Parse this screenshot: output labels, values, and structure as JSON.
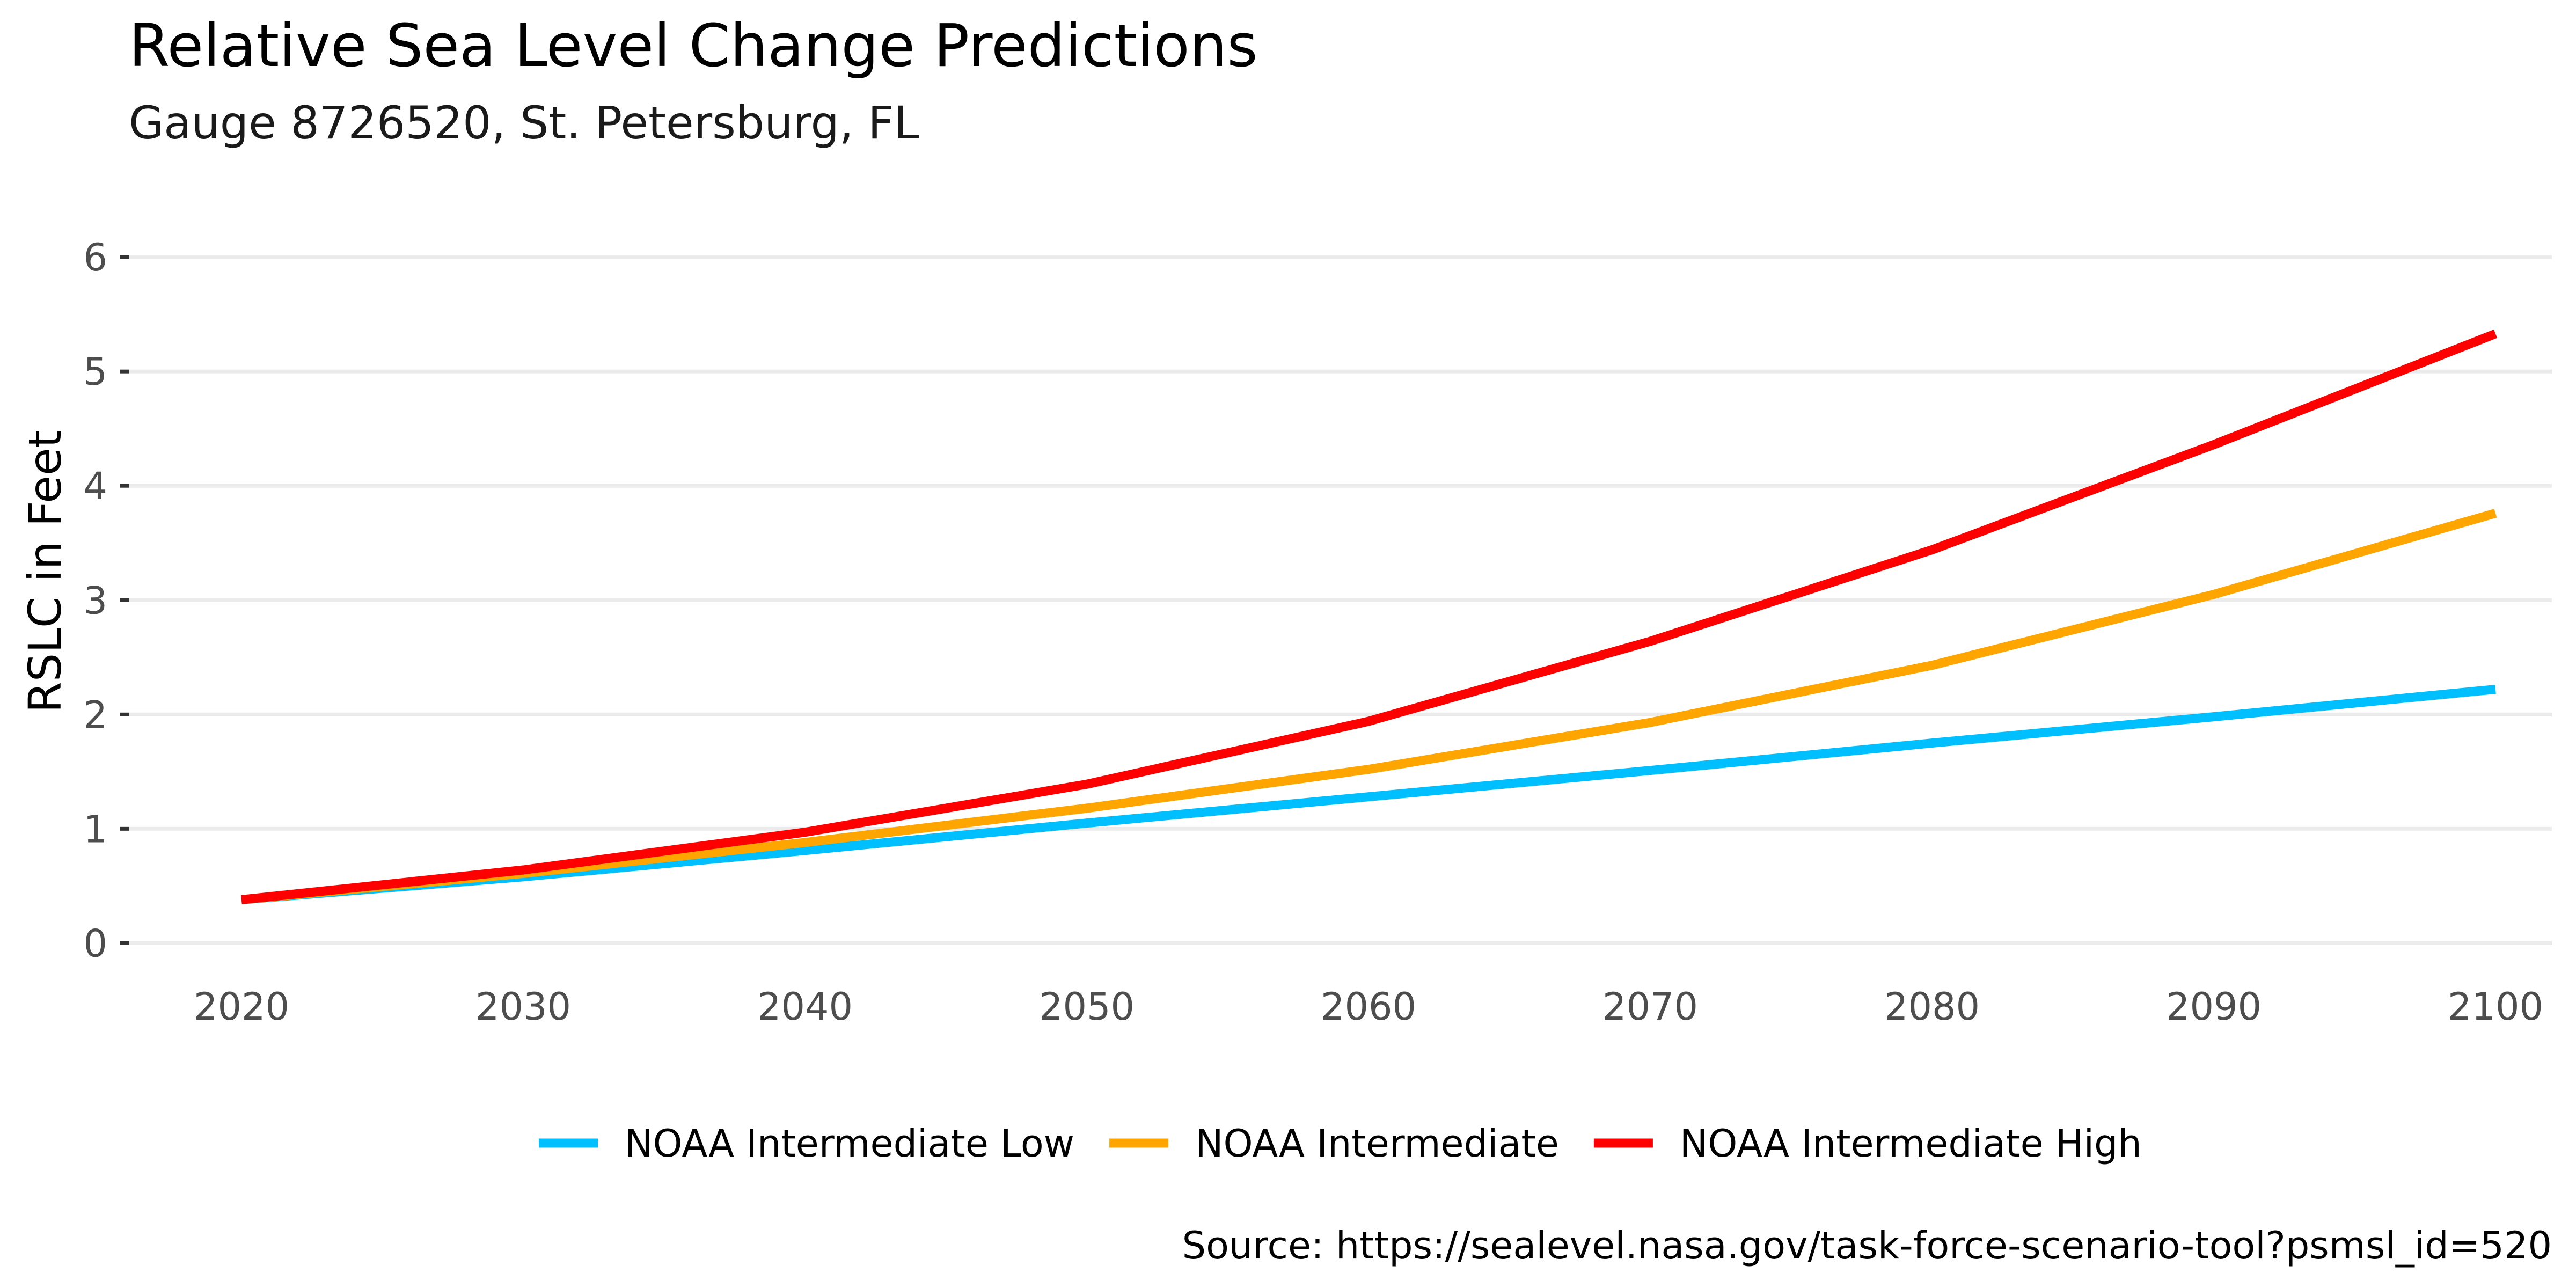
{
  "chart_data": {
    "type": "line",
    "title": "Relative Sea Level Change Predictions",
    "subtitle": "Gauge 8726520, St. Petersburg, FL",
    "xlabel": "",
    "ylabel": "RSLC in Feet",
    "caption": "Source: https://sealevel.nasa.gov/task-force-scenario-tool?psmsl_id=520",
    "x": [
      2020,
      2030,
      2040,
      2050,
      2060,
      2070,
      2080,
      2090,
      2100
    ],
    "x_ticks": [
      "2020",
      "2030",
      "2040",
      "2050",
      "2060",
      "2070",
      "2080",
      "2090",
      "2100"
    ],
    "y_ticks": [
      "0",
      "1",
      "2",
      "3",
      "4",
      "5",
      "6"
    ],
    "xlim": [
      2016,
      2102
    ],
    "ylim": [
      0,
      6
    ],
    "grid": true,
    "legend_position": "bottom",
    "series": [
      {
        "name": "NOAA Intermediate Low",
        "color": "#00bfff",
        "values": [
          0.38,
          0.58,
          0.81,
          1.05,
          1.28,
          1.51,
          1.75,
          1.98,
          2.22
        ]
      },
      {
        "name": "NOAA Intermediate",
        "color": "#ffa500",
        "values": [
          0.38,
          0.61,
          0.88,
          1.18,
          1.52,
          1.93,
          2.43,
          3.05,
          3.76
        ]
      },
      {
        "name": "NOAA Intermediate High",
        "color": "#ff0000",
        "values": [
          0.38,
          0.64,
          0.97,
          1.39,
          1.94,
          2.64,
          3.44,
          4.36,
          5.33
        ]
      }
    ]
  }
}
